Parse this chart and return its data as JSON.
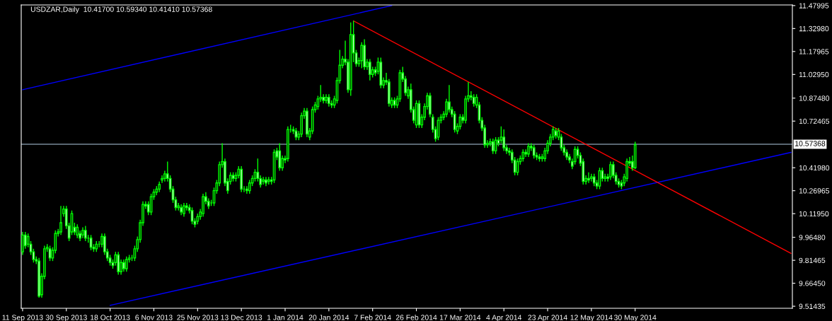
{
  "chart_data": {
    "type": "candlestick",
    "title": "USDZAR,Daily  10.41700 10.59340 10.41410 10.57368",
    "color": "#00ff00",
    "categories": [
      "11 Sep 2013",
      null,
      null,
      null,
      null,
      null,
      null,
      null,
      null,
      null,
      null,
      null,
      null,
      null,
      null,
      null,
      "30 Sep 2013",
      null,
      null,
      null,
      null,
      null,
      null,
      null,
      null,
      null,
      null,
      null,
      null,
      null,
      null,
      null,
      "18 Oct 2013",
      null,
      null,
      null,
      null,
      null,
      null,
      null,
      null,
      null,
      null,
      null,
      null,
      null,
      null,
      null,
      "6 Nov 2013",
      null,
      null,
      null,
      null,
      null,
      null,
      null,
      null,
      null,
      null,
      null,
      null,
      null,
      null,
      null,
      "25 Nov 2013",
      null,
      null,
      null,
      null,
      null,
      null,
      null,
      null,
      null,
      null,
      null,
      null,
      null,
      null,
      null,
      "13 Dec 2013",
      null,
      null,
      null,
      null,
      null,
      null,
      null,
      null,
      null,
      null,
      null,
      null,
      null,
      null,
      null,
      "1 Jan 2014",
      null,
      null,
      null,
      null,
      null,
      null,
      null,
      null,
      null,
      null,
      null,
      null,
      null,
      null,
      null,
      "20 Jan 2014",
      null,
      null,
      null,
      null,
      null,
      null,
      null,
      null,
      null,
      null,
      null,
      null,
      null,
      null,
      null,
      "7 Feb 2014",
      null,
      null,
      null,
      null,
      null,
      null,
      null,
      null,
      null,
      null,
      null,
      null,
      null,
      null,
      null,
      "26 Feb 2014",
      null,
      null,
      null,
      null,
      null,
      null,
      null,
      null,
      null,
      null,
      null,
      null,
      null,
      null,
      null,
      "17 Mar 2014",
      null,
      null,
      null,
      null,
      null,
      null,
      null,
      null,
      null,
      null,
      null,
      null,
      null,
      null,
      null,
      "4 Apr 2014",
      null,
      null,
      null,
      null,
      null,
      null,
      null,
      null,
      null,
      null,
      null,
      null,
      null,
      null,
      null,
      "23 Apr 2014",
      null,
      null,
      null,
      null,
      null,
      null,
      null,
      null,
      null,
      null,
      null,
      null,
      null,
      null,
      null,
      "12 May 2014",
      null,
      null,
      null,
      null,
      null,
      null,
      null,
      null,
      null,
      null,
      null,
      null,
      null,
      null,
      null,
      "30 May 2014",
      null,
      null,
      null,
      null,
      null,
      null,
      null,
      null,
      null,
      null,
      null,
      null,
      null,
      null,
      null,
      null,
      null,
      null,
      null,
      null,
      null,
      null,
      null,
      null,
      null,
      null,
      null,
      null,
      null,
      null,
      null,
      null,
      null,
      null,
      null,
      null,
      null,
      null,
      null,
      null,
      null,
      null,
      null,
      null,
      null,
      null,
      null,
      null,
      null,
      null,
      null,
      null,
      null,
      null,
      null,
      null,
      null
    ],
    "ohlc": [
      [
        9.87,
        10.0,
        9.85,
        9.98
      ],
      [
        9.98,
        10.0,
        9.89,
        9.91
      ],
      [
        9.92,
        9.99,
        9.9,
        9.97
      ],
      [
        9.92,
        9.94,
        9.85,
        9.87
      ],
      [
        9.87,
        9.89,
        9.8,
        9.82
      ],
      [
        9.82,
        9.84,
        9.79,
        9.81
      ],
      [
        9.81,
        9.83,
        9.57,
        9.58
      ],
      [
        9.59,
        9.73,
        9.57,
        9.71
      ],
      [
        9.71,
        9.91,
        9.69,
        9.89
      ],
      [
        9.89,
        9.92,
        9.87,
        9.9
      ],
      [
        9.89,
        9.91,
        9.81,
        9.83
      ],
      [
        9.83,
        9.9,
        9.81,
        9.88
      ],
      [
        9.88,
        10.01,
        9.86,
        9.99
      ],
      [
        9.99,
        10.02,
        9.97,
        10.0
      ],
      [
        10.0,
        10.17,
        9.98,
        10.06
      ],
      [
        10.12,
        10.17,
        10.1,
        10.15
      ],
      [
        10.15,
        10.17,
        10.02,
        10.04
      ],
      [
        10.04,
        10.06,
        9.94,
        9.96
      ],
      [
        10.0,
        10.14,
        9.98,
        10.12
      ],
      [
        10.03,
        10.06,
        9.98,
        10.0
      ],
      [
        9.98,
        10.05,
        9.96,
        10.03
      ],
      [
        9.99,
        10.01,
        9.94,
        9.96
      ],
      [
        9.98,
        10.03,
        9.96,
        10.01
      ],
      [
        10.01,
        10.04,
        9.94,
        9.96
      ],
      [
        9.96,
        9.98,
        9.93,
        9.96
      ],
      [
        9.96,
        9.98,
        9.88,
        9.9
      ],
      [
        9.9,
        9.92,
        9.87,
        9.89
      ],
      [
        9.89,
        9.94,
        9.87,
        9.92
      ],
      [
        9.92,
        9.94,
        9.9,
        9.92
      ],
      [
        9.92,
        9.99,
        9.9,
        9.97
      ],
      [
        9.97,
        9.99,
        9.85,
        9.87
      ],
      [
        9.87,
        9.89,
        9.81,
        9.83
      ],
      [
        9.83,
        9.85,
        9.78,
        9.8
      ],
      [
        9.8,
        9.82,
        9.76,
        9.78
      ],
      [
        9.8,
        9.87,
        9.78,
        9.85
      ],
      [
        9.85,
        9.87,
        9.72,
        9.74
      ],
      [
        9.74,
        9.82,
        9.72,
        9.8
      ],
      [
        9.8,
        9.82,
        9.74,
        9.76
      ],
      [
        9.76,
        9.84,
        9.74,
        9.82
      ],
      [
        9.82,
        9.85,
        9.8,
        9.83
      ],
      [
        9.83,
        9.85,
        9.81,
        9.83
      ],
      [
        9.83,
        9.91,
        9.81,
        9.89
      ],
      [
        9.89,
        9.97,
        9.87,
        9.95
      ],
      [
        9.95,
        10.08,
        9.93,
        10.06
      ],
      [
        10.06,
        10.2,
        10.04,
        10.18
      ],
      [
        10.18,
        10.2,
        10.15,
        10.17
      ],
      [
        10.18,
        10.2,
        10.11,
        10.13
      ],
      [
        10.13,
        10.25,
        10.11,
        10.23
      ],
      [
        10.23,
        10.28,
        10.21,
        10.26
      ],
      [
        10.26,
        10.3,
        10.24,
        10.28
      ],
      [
        10.28,
        10.33,
        10.26,
        10.31
      ],
      [
        10.34,
        10.37,
        10.32,
        10.35
      ],
      [
        10.35,
        10.4,
        10.33,
        10.38
      ],
      [
        10.38,
        10.46,
        10.33,
        10.35
      ],
      [
        10.35,
        10.37,
        10.26,
        10.28
      ],
      [
        10.28,
        10.3,
        10.19,
        10.21
      ],
      [
        10.21,
        10.23,
        10.14,
        10.16
      ],
      [
        10.16,
        10.19,
        10.14,
        10.17
      ],
      [
        10.16,
        10.18,
        10.11,
        10.13
      ],
      [
        10.12,
        10.19,
        10.1,
        10.17
      ],
      [
        10.17,
        10.19,
        10.14,
        10.16
      ],
      [
        10.16,
        10.18,
        10.12,
        10.14
      ],
      [
        10.14,
        10.16,
        10.05,
        10.07
      ],
      [
        10.07,
        10.09,
        10.03,
        10.05
      ],
      [
        10.07,
        10.12,
        10.05,
        10.1
      ],
      [
        10.1,
        10.15,
        10.08,
        10.13
      ],
      [
        10.12,
        10.25,
        10.1,
        10.23
      ],
      [
        10.23,
        10.26,
        10.18,
        10.2
      ],
      [
        10.2,
        10.22,
        10.15,
        10.17
      ],
      [
        10.19,
        10.21,
        10.17,
        10.19
      ],
      [
        10.19,
        10.29,
        10.17,
        10.27
      ],
      [
        10.27,
        10.34,
        10.25,
        10.32
      ],
      [
        10.32,
        10.46,
        10.3,
        10.44
      ],
      [
        10.44,
        10.58,
        10.42,
        10.46
      ],
      [
        10.46,
        10.48,
        10.3,
        10.32
      ],
      [
        10.33,
        10.35,
        10.25,
        10.27
      ],
      [
        10.33,
        10.39,
        10.31,
        10.37
      ],
      [
        10.37,
        10.39,
        10.33,
        10.35
      ],
      [
        10.35,
        10.39,
        10.33,
        10.37
      ],
      [
        10.37,
        10.43,
        10.35,
        10.41
      ],
      [
        10.41,
        10.43,
        10.26,
        10.28
      ],
      [
        10.28,
        10.3,
        10.26,
        10.28
      ],
      [
        10.28,
        10.3,
        10.25,
        10.27
      ],
      [
        10.27,
        10.34,
        10.25,
        10.32
      ],
      [
        10.32,
        10.37,
        10.3,
        10.35
      ],
      [
        10.35,
        10.41,
        10.33,
        10.39
      ],
      [
        10.39,
        10.48,
        10.33,
        10.35
      ],
      [
        10.35,
        10.37,
        10.29,
        10.31
      ],
      [
        10.33,
        10.36,
        10.31,
        10.34
      ],
      [
        10.34,
        10.36,
        10.3,
        10.32
      ],
      [
        10.33,
        10.36,
        10.31,
        10.34
      ],
      [
        10.34,
        10.36,
        10.31,
        10.33
      ],
      [
        10.34,
        10.54,
        10.32,
        10.52
      ],
      [
        10.53,
        10.55,
        10.47,
        10.49
      ],
      [
        10.53,
        10.58,
        10.4,
        10.42
      ],
      [
        10.42,
        10.5,
        10.4,
        10.48
      ],
      [
        10.48,
        10.5,
        10.45,
        10.47
      ],
      [
        10.48,
        10.69,
        10.46,
        10.67
      ],
      [
        10.67,
        10.7,
        10.65,
        10.67
      ],
      [
        10.67,
        10.69,
        10.64,
        10.66
      ],
      [
        10.66,
        10.68,
        10.6,
        10.62
      ],
      [
        10.62,
        10.66,
        10.6,
        10.64
      ],
      [
        10.64,
        10.78,
        10.62,
        10.76
      ],
      [
        10.76,
        10.81,
        10.74,
        10.79
      ],
      [
        10.79,
        10.81,
        10.62,
        10.64
      ],
      [
        10.62,
        10.68,
        10.6,
        10.66
      ],
      [
        10.66,
        10.82,
        10.64,
        10.8
      ],
      [
        10.8,
        10.85,
        10.78,
        10.83
      ],
      [
        10.82,
        10.89,
        10.8,
        10.87
      ],
      [
        10.87,
        10.96,
        10.85,
        10.88
      ],
      [
        10.88,
        10.9,
        10.84,
        10.86
      ],
      [
        10.86,
        10.9,
        10.84,
        10.88
      ],
      [
        10.88,
        10.9,
        10.82,
        10.84
      ],
      [
        10.84,
        10.86,
        10.81,
        10.83
      ],
      [
        10.83,
        10.89,
        10.81,
        10.87
      ],
      [
        10.86,
        11.01,
        10.84,
        10.99
      ],
      [
        10.99,
        11.19,
        10.97,
        11.09
      ],
      [
        11.09,
        11.15,
        11.07,
        11.13
      ],
      [
        11.13,
        11.25,
        11.09,
        11.11
      ],
      [
        11.11,
        11.13,
        10.91,
        10.93
      ],
      [
        10.93,
        11.37,
        10.89,
        11.29
      ],
      [
        11.29,
        11.38,
        11.11,
        11.17
      ],
      [
        11.17,
        11.19,
        11.08,
        11.1
      ],
      [
        11.1,
        11.14,
        11.08,
        11.12
      ],
      [
        11.12,
        11.24,
        11.07,
        11.22
      ],
      [
        11.22,
        11.26,
        11.06,
        11.08
      ],
      [
        11.08,
        11.13,
        11.06,
        11.11
      ],
      [
        11.11,
        11.13,
        10.99,
        11.03
      ],
      [
        11.03,
        11.08,
        11.01,
        11.06
      ],
      [
        11.06,
        11.08,
        11.02,
        11.04
      ],
      [
        11.05,
        11.14,
        11.03,
        11.11
      ],
      [
        11.11,
        11.14,
        10.94,
        10.96
      ],
      [
        10.96,
        11.01,
        10.94,
        10.99
      ],
      [
        10.99,
        11.04,
        10.96,
        10.98
      ],
      [
        10.98,
        11.0,
        10.82,
        10.84
      ],
      [
        10.83,
        10.88,
        10.81,
        10.86
      ],
      [
        10.86,
        10.88,
        10.81,
        10.83
      ],
      [
        10.83,
        10.89,
        10.81,
        10.87
      ],
      [
        10.87,
        11.06,
        10.85,
        11.04
      ],
      [
        11.04,
        11.08,
        10.98,
        11.0
      ],
      [
        11.0,
        11.02,
        10.89,
        10.91
      ],
      [
        10.89,
        10.95,
        10.87,
        10.93
      ],
      [
        10.93,
        10.97,
        10.78,
        10.8
      ],
      [
        10.8,
        10.82,
        10.71,
        10.73
      ],
      [
        10.7,
        10.86,
        10.68,
        10.84
      ],
      [
        10.84,
        10.86,
        10.68,
        10.7
      ],
      [
        10.7,
        10.77,
        10.68,
        10.75
      ],
      [
        10.75,
        10.84,
        10.73,
        10.82
      ],
      [
        10.82,
        10.91,
        10.8,
        10.89
      ],
      [
        10.89,
        10.91,
        10.75,
        10.77
      ],
      [
        10.75,
        10.77,
        10.65,
        10.67
      ],
      [
        10.67,
        10.69,
        10.59,
        10.61
      ],
      [
        10.62,
        10.75,
        10.6,
        10.73
      ],
      [
        10.73,
        10.77,
        10.71,
        10.75
      ],
      [
        10.75,
        10.79,
        10.73,
        10.77
      ],
      [
        10.77,
        10.87,
        10.75,
        10.85
      ],
      [
        10.85,
        10.96,
        10.78,
        10.8
      ],
      [
        10.8,
        10.82,
        10.75,
        10.77
      ],
      [
        10.77,
        10.79,
        10.65,
        10.67
      ],
      [
        10.66,
        10.71,
        10.64,
        10.69
      ],
      [
        10.69,
        10.77,
        10.67,
        10.75
      ],
      [
        10.75,
        10.77,
        10.71,
        10.73
      ],
      [
        10.73,
        10.89,
        10.71,
        10.87
      ],
      [
        10.87,
        10.98,
        10.85,
        10.89
      ],
      [
        10.89,
        10.92,
        10.86,
        10.88
      ],
      [
        10.88,
        10.9,
        10.82,
        10.84
      ],
      [
        10.83,
        10.9,
        10.81,
        10.88
      ],
      [
        10.83,
        10.85,
        10.71,
        10.73
      ],
      [
        10.73,
        10.75,
        10.66,
        10.68
      ],
      [
        10.68,
        10.7,
        10.55,
        10.57
      ],
      [
        10.57,
        10.6,
        10.55,
        10.58
      ],
      [
        10.58,
        10.61,
        10.56,
        10.59
      ],
      [
        10.59,
        10.61,
        10.51,
        10.53
      ],
      [
        10.53,
        10.62,
        10.51,
        10.6
      ],
      [
        10.6,
        10.62,
        10.56,
        10.58
      ],
      [
        10.6,
        10.69,
        10.58,
        10.62
      ],
      [
        10.62,
        10.67,
        10.53,
        10.55
      ],
      [
        10.55,
        10.57,
        10.51,
        10.53
      ],
      [
        10.53,
        10.55,
        10.5,
        10.52
      ],
      [
        10.52,
        10.54,
        10.45,
        10.47
      ],
      [
        10.47,
        10.49,
        10.37,
        10.39
      ],
      [
        10.39,
        10.48,
        10.37,
        10.46
      ],
      [
        10.46,
        10.5,
        10.44,
        10.48
      ],
      [
        10.48,
        10.54,
        10.46,
        10.52
      ],
      [
        10.52,
        10.54,
        10.49,
        10.51
      ],
      [
        10.51,
        10.58,
        10.49,
        10.56
      ],
      [
        10.56,
        10.58,
        10.53,
        10.55
      ],
      [
        10.55,
        10.57,
        10.48,
        10.5
      ],
      [
        10.5,
        10.52,
        10.47,
        10.49
      ],
      [
        10.49,
        10.51,
        10.46,
        10.48
      ],
      [
        10.48,
        10.51,
        10.46,
        10.49
      ],
      [
        10.48,
        10.55,
        10.46,
        10.53
      ],
      [
        10.53,
        10.6,
        10.51,
        10.58
      ],
      [
        10.58,
        10.64,
        10.56,
        10.62
      ],
      [
        10.62,
        10.69,
        10.6,
        10.67
      ],
      [
        10.66,
        10.68,
        10.61,
        10.63
      ],
      [
        10.62,
        10.68,
        10.6,
        10.66
      ],
      [
        10.62,
        10.64,
        10.53,
        10.55
      ],
      [
        10.55,
        10.57,
        10.5,
        10.52
      ],
      [
        10.52,
        10.54,
        10.47,
        10.49
      ],
      [
        10.49,
        10.51,
        10.45,
        10.47
      ],
      [
        10.46,
        10.48,
        10.41,
        10.43
      ],
      [
        10.46,
        10.56,
        10.44,
        10.54
      ],
      [
        10.54,
        10.56,
        10.48,
        10.5
      ],
      [
        10.5,
        10.52,
        10.43,
        10.45
      ],
      [
        10.46,
        10.48,
        10.31,
        10.33
      ],
      [
        10.33,
        10.37,
        10.31,
        10.35
      ],
      [
        10.35,
        10.39,
        10.32,
        10.34
      ],
      [
        10.35,
        10.38,
        10.33,
        10.36
      ],
      [
        10.36,
        10.38,
        10.3,
        10.32
      ],
      [
        10.32,
        10.34,
        10.28,
        10.3
      ],
      [
        10.3,
        10.42,
        10.28,
        10.4
      ],
      [
        10.4,
        10.42,
        10.33,
        10.35
      ],
      [
        10.35,
        10.38,
        10.33,
        10.36
      ],
      [
        10.36,
        10.38,
        10.33,
        10.35
      ],
      [
        10.36,
        10.46,
        10.34,
        10.44
      ],
      [
        10.44,
        10.46,
        10.35,
        10.37
      ],
      [
        10.37,
        10.39,
        10.31,
        10.33
      ],
      [
        10.33,
        10.35,
        10.29,
        10.31
      ],
      [
        10.32,
        10.34,
        10.28,
        10.3
      ],
      [
        10.32,
        10.38,
        10.3,
        10.36
      ],
      [
        10.35,
        10.48,
        10.33,
        10.46
      ],
      [
        10.46,
        10.49,
        10.43,
        10.45
      ],
      [
        10.46,
        10.5,
        10.4,
        10.42
      ],
      [
        10.42,
        10.59,
        10.41,
        10.57
      ],
      null,
      null,
      null,
      null,
      null,
      null,
      null,
      null,
      null,
      null,
      null,
      null,
      null,
      null,
      null,
      null,
      null,
      null,
      null,
      null,
      null,
      null,
      null,
      null,
      null,
      null,
      null,
      null,
      null,
      null,
      null,
      null,
      null,
      null,
      null,
      null,
      null,
      null,
      null,
      null,
      null,
      null,
      null,
      null,
      null,
      null,
      null,
      null,
      null,
      null,
      null,
      null,
      null,
      null,
      null,
      null,
      null
    ],
    "series": [
      {
        "type": "line",
        "color": "#0000ff",
        "values": [
          10.93,
          null,
          null,
          null,
          null,
          null,
          null,
          null,
          null,
          null,
          null,
          null,
          null,
          null,
          null,
          null,
          null,
          null,
          null,
          null,
          null,
          null,
          null,
          null,
          null,
          null,
          null,
          null,
          null,
          null,
          null,
          null,
          null,
          null,
          null,
          null,
          null,
          null,
          null,
          null,
          null,
          null,
          null,
          null,
          null,
          null,
          null,
          null,
          null,
          null,
          null,
          null,
          null,
          null,
          null,
          null,
          null,
          null,
          null,
          null,
          null,
          null,
          null,
          null,
          null,
          null,
          null,
          null,
          null,
          null,
          null,
          null,
          null,
          null,
          null,
          null,
          null,
          null,
          null,
          null,
          null,
          null,
          null,
          null,
          null,
          null,
          null,
          null,
          null,
          null,
          null,
          null,
          null,
          null,
          null,
          null,
          null,
          null,
          null,
          null,
          null,
          null,
          null,
          null,
          null,
          null,
          null,
          null,
          null,
          null,
          null,
          null,
          null,
          null,
          null,
          null,
          null,
          null,
          null,
          null,
          null,
          null,
          null,
          null,
          null,
          null,
          null,
          null,
          null,
          null,
          null,
          null,
          null,
          null,
          null,
          11.48,
          null,
          null,
          null,
          null,
          null,
          null,
          null,
          null,
          null,
          null,
          null,
          null,
          null,
          null,
          null,
          null,
          null,
          null,
          null,
          null,
          null,
          null,
          null,
          null,
          null,
          null,
          null,
          null,
          null,
          null,
          null,
          null,
          null,
          null,
          null,
          null,
          null,
          null,
          null,
          null,
          null,
          null,
          null,
          null,
          null,
          null,
          null,
          null,
          null,
          null,
          null,
          null,
          null,
          null,
          null,
          null,
          null,
          null,
          null,
          null,
          null,
          null,
          null,
          null,
          null,
          null,
          null,
          null,
          null,
          null,
          null,
          null,
          null,
          null,
          null,
          null,
          null,
          null,
          null,
          null,
          null,
          null,
          null,
          null,
          null,
          null,
          null,
          null,
          null,
          null,
          null,
          null,
          null,
          null,
          null,
          null,
          null,
          null,
          null,
          null,
          null,
          null,
          null,
          null,
          null,
          null,
          null,
          null,
          null,
          null,
          null,
          null,
          null,
          null,
          null,
          null,
          null,
          null,
          null,
          null,
          null,
          null,
          null,
          null,
          null,
          null,
          null,
          null,
          null,
          null,
          null,
          null,
          null,
          null,
          null,
          null,
          null,
          null,
          null,
          null,
          null,
          null,
          null,
          null,
          null,
          null
        ]
      },
      {
        "type": "line",
        "color": "#0000ff",
        "values": [
          null,
          null,
          null,
          null,
          null,
          null,
          null,
          null,
          null,
          null,
          null,
          null,
          null,
          null,
          null,
          null,
          null,
          null,
          null,
          null,
          null,
          null,
          null,
          null,
          null,
          null,
          null,
          null,
          null,
          null,
          null,
          null,
          9.52,
          null,
          null,
          null,
          null,
          null,
          null,
          null,
          null,
          null,
          null,
          null,
          null,
          null,
          null,
          null,
          null,
          null,
          null,
          null,
          null,
          null,
          null,
          null,
          null,
          null,
          null,
          null,
          null,
          null,
          null,
          null,
          null,
          null,
          null,
          null,
          null,
          null,
          null,
          null,
          null,
          null,
          null,
          null,
          null,
          null,
          null,
          null,
          null,
          null,
          null,
          null,
          null,
          null,
          null,
          null,
          null,
          null,
          null,
          null,
          null,
          null,
          null,
          null,
          null,
          null,
          null,
          null,
          null,
          null,
          null,
          null,
          null,
          null,
          null,
          null,
          null,
          null,
          null,
          null,
          null,
          null,
          null,
          null,
          null,
          null,
          null,
          null,
          null,
          null,
          null,
          null,
          null,
          null,
          null,
          null,
          null,
          null,
          null,
          null,
          null,
          null,
          null,
          null,
          null,
          null,
          null,
          null,
          null,
          null,
          null,
          null,
          null,
          null,
          null,
          null,
          null,
          null,
          null,
          null,
          null,
          null,
          null,
          null,
          null,
          null,
          null,
          null,
          null,
          null,
          null,
          null,
          null,
          null,
          null,
          null,
          null,
          null,
          null,
          null,
          null,
          null,
          null,
          null,
          null,
          null,
          null,
          null,
          null,
          null,
          null,
          null,
          null,
          null,
          null,
          null,
          null,
          null,
          null,
          null,
          null,
          null,
          null,
          null,
          null,
          null,
          null,
          null,
          null,
          null,
          null,
          null,
          null,
          null,
          null,
          null,
          null,
          null,
          null,
          null,
          null,
          null,
          null,
          null,
          null,
          null,
          null,
          null,
          null,
          null,
          null,
          null,
          null,
          null,
          null,
          null,
          null,
          null,
          null,
          null,
          null,
          null,
          null,
          null,
          null,
          null,
          null,
          null,
          null,
          null,
          null,
          null,
          null,
          null,
          null,
          null,
          null,
          null,
          null,
          null,
          null,
          null,
          null,
          null,
          null,
          null,
          null,
          null,
          null,
          null,
          null,
          null,
          null,
          null,
          null,
          null,
          null,
          null,
          null,
          null,
          null,
          null,
          null,
          null,
          null,
          null,
          null,
          null,
          null,
          10.52
        ]
      },
      {
        "type": "line",
        "color": "#ff0000",
        "values": [
          null,
          null,
          null,
          null,
          null,
          null,
          null,
          null,
          null,
          null,
          null,
          null,
          null,
          null,
          null,
          null,
          null,
          null,
          null,
          null,
          null,
          null,
          null,
          null,
          null,
          null,
          null,
          null,
          null,
          null,
          null,
          null,
          null,
          null,
          null,
          null,
          null,
          null,
          null,
          null,
          null,
          null,
          null,
          null,
          null,
          null,
          null,
          null,
          null,
          null,
          null,
          null,
          null,
          null,
          null,
          null,
          null,
          null,
          null,
          null,
          null,
          null,
          null,
          null,
          null,
          null,
          null,
          null,
          null,
          null,
          null,
          null,
          null,
          null,
          null,
          null,
          null,
          null,
          null,
          null,
          null,
          null,
          null,
          null,
          null,
          null,
          null,
          null,
          null,
          null,
          null,
          null,
          null,
          null,
          null,
          null,
          null,
          null,
          null,
          null,
          null,
          null,
          null,
          null,
          null,
          null,
          null,
          null,
          null,
          null,
          null,
          null,
          null,
          null,
          null,
          null,
          null,
          null,
          null,
          null,
          null,
          11.38,
          null,
          null,
          null,
          null,
          null,
          null,
          null,
          null,
          null,
          null,
          null,
          null,
          null,
          null,
          null,
          null,
          null,
          null,
          null,
          null,
          null,
          null,
          null,
          null,
          null,
          null,
          null,
          null,
          null,
          null,
          null,
          null,
          null,
          null,
          null,
          null,
          null,
          null,
          null,
          null,
          null,
          null,
          null,
          null,
          null,
          null,
          null,
          null,
          null,
          null,
          null,
          null,
          null,
          null,
          null,
          null,
          null,
          null,
          null,
          null,
          null,
          null,
          null,
          null,
          null,
          null,
          null,
          null,
          null,
          null,
          null,
          null,
          null,
          null,
          null,
          null,
          null,
          null,
          null,
          null,
          null,
          null,
          null,
          null,
          null,
          null,
          null,
          null,
          null,
          null,
          null,
          null,
          null,
          null,
          null,
          null,
          null,
          null,
          null,
          null,
          null,
          null,
          null,
          null,
          null,
          null,
          null,
          null,
          null,
          null,
          null,
          null,
          null,
          null,
          null,
          null,
          null,
          null,
          null,
          null,
          null,
          null,
          null,
          null,
          null,
          null,
          null,
          null,
          null,
          null,
          null,
          null,
          null,
          null,
          null,
          null,
          null,
          null,
          null,
          null,
          null,
          null,
          null,
          null,
          null,
          null,
          null,
          null,
          null,
          null,
          null,
          null,
          null,
          null,
          null,
          null,
          null,
          null,
          null,
          9.86
        ]
      }
    ],
    "ref_lines": [
      {
        "axis": "y",
        "value": 10.57368,
        "label": "10.57368",
        "color": "#778899"
      }
    ],
    "ylim": [
      9.501,
      11.484
    ],
    "yticks": [
      {
        "value": 9.51435,
        "label": "9.51435"
      },
      {
        "value": 9.6645,
        "label": "9.66450"
      },
      {
        "value": 9.81465,
        "label": "9.81465"
      },
      {
        "value": 9.9648,
        "label": "9.96480"
      },
      {
        "value": 10.1195,
        "label": "10.11950"
      },
      {
        "value": 10.26965,
        "label": "10.26965"
      },
      {
        "value": 10.4198,
        "label": "10.41980"
      },
      {
        "value": 10.72465,
        "label": "10.72465"
      },
      {
        "value": 10.8748,
        "label": "10.87480"
      },
      {
        "value": 11.0295,
        "label": "11.02950"
      },
      {
        "value": 11.17965,
        "label": "11.17965"
      },
      {
        "value": 11.3298,
        "label": "11.32980"
      },
      {
        "value": 11.47995,
        "label": "11.47995"
      }
    ]
  }
}
